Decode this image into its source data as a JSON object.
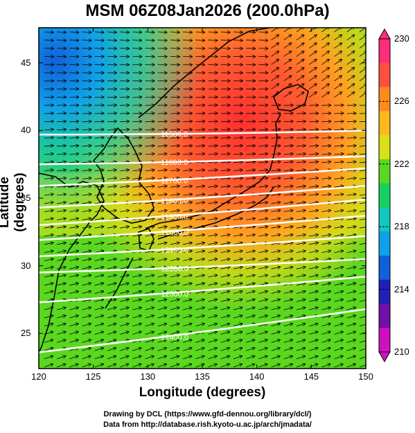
{
  "title": "MSM 06Z08Jan2026 (200.0hPa)",
  "xlabel": "Longitude (degrees)",
  "ylabel": "Latitude  (degrees)",
  "x_ticks": [
    "120",
    "125",
    "130",
    "135",
    "140",
    "145",
    "150"
  ],
  "y_ticks": [
    "25",
    "30",
    "35",
    "40",
    "45"
  ],
  "colorbar": {
    "min": 210,
    "max": 230,
    "ticks": [
      "230",
      "226",
      "222",
      "218",
      "214",
      "210"
    ],
    "colors": [
      "#ff2d7a",
      "#ff5040",
      "#ff8a20",
      "#ffb820",
      "#d8e018",
      "#5ad820",
      "#18d060",
      "#10c8c0",
      "#10a0e8",
      "#1060d8",
      "#2020b8",
      "#7010a8",
      "#d010c0"
    ]
  },
  "contours": [
    {
      "label": "11500.0",
      "lat_w": 39.7,
      "lat_e": 40.0
    },
    {
      "label": "11600.0",
      "lat_w": 37.5,
      "lat_e": 38.1
    },
    {
      "label": "11700.0",
      "lat_w": 35.9,
      "lat_e": 37.2
    },
    {
      "label": "11800.0",
      "lat_w": 34.3,
      "lat_e": 35.9
    },
    {
      "label": "11900.0",
      "lat_w": 33.0,
      "lat_e": 34.9
    },
    {
      "label": "12000.0",
      "lat_w": 31.9,
      "lat_e": 33.7
    },
    {
      "label": "12100.0",
      "lat_w": 30.7,
      "lat_e": 32.2
    },
    {
      "label": "12200.0",
      "lat_w": 29.5,
      "lat_e": 30.5
    },
    {
      "label": "12300.0",
      "lat_w": 27.3,
      "lat_e": 29.2
    },
    {
      "label": "12400.0",
      "lat_w": 23.6,
      "lat_e": 26.8
    }
  ],
  "credits": [
    "Drawing by DCL (https://www.gfd-dennou.org/library/dcl/)",
    "Data from http://database.rish.kyoto-u.ac.jp/arch/jmadata/"
  ]
}
